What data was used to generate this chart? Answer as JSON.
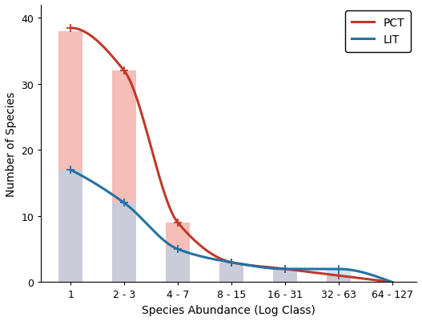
{
  "categories": [
    "1",
    "2 - 3",
    "4 - 7",
    "8 - 15",
    "16 - 31",
    "32 - 63",
    "64 - 127"
  ],
  "pct_bars": [
    38,
    32,
    9,
    3,
    2,
    1,
    0
  ],
  "lit_bars": [
    17,
    12,
    5,
    3,
    2,
    2,
    0
  ],
  "pct_curve_x": [
    0,
    1,
    2,
    3,
    4,
    5,
    6
  ],
  "pct_curve_y": [
    38.5,
    32.0,
    9.0,
    3.0,
    2.0,
    1.0,
    0.0
  ],
  "lit_curve_x": [
    0,
    1,
    2,
    3,
    4,
    5,
    6
  ],
  "lit_curve_y": [
    17.0,
    12.0,
    5.0,
    3.0,
    2.0,
    2.0,
    0.0
  ],
  "pct_color": "#c0392b",
  "lit_color": "#2471a3",
  "pct_bar_color": "#f1948a",
  "lit_bar_color": "#aed6f1",
  "xlabel": "Species Abundance (Log Class)",
  "ylabel": "Number of Species",
  "ylim": [
    0,
    42
  ],
  "yticks": [
    0,
    10,
    20,
    30,
    40
  ],
  "legend_labels": [
    "PCT",
    "LIT"
  ],
  "bar_width": 0.45,
  "bar_alpha": 0.6,
  "pct_marker_indices": [
    0,
    1,
    2,
    3,
    4,
    5
  ],
  "lit_marker_indices": [
    0,
    1,
    2,
    3,
    4,
    5
  ]
}
